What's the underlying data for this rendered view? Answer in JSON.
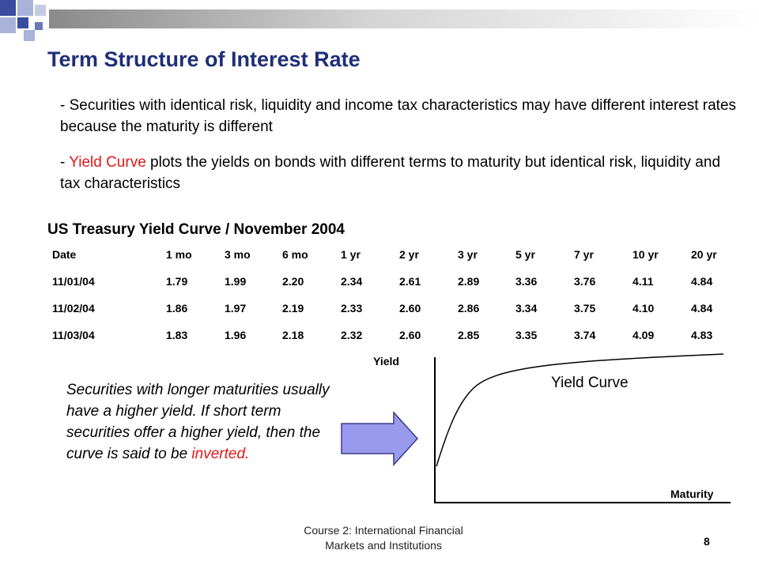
{
  "slide": {
    "title": "Term Structure of Interest Rate",
    "bullet1": "- Securities with identical risk, liquidity and income tax characteristics may have different interest rates because the maturity is different",
    "bullet2_prefix": "- ",
    "bullet2_highlight": "Yield Curve",
    "bullet2_rest": " plots the yields on bonds with different terms to maturity but identical risk, liquidity and tax characteristics",
    "table_title": "US Treasury Yield Curve / November 2004",
    "note_text": "Securities with longer maturities usually have a higher yield. If short term securities offer a higher yield, then the curve is said to be ",
    "note_highlight": "inverted.",
    "footer_line1": "Course 2: International Financial",
    "footer_line2": "Markets and Institutions",
    "page_number": "8",
    "colors": {
      "title": "#1f2f78",
      "highlight": "#e01818",
      "arrow_fill": "#9999ee",
      "deco_blue": "#3a4ba0",
      "deco_light": "#a9b2d8"
    }
  },
  "table": {
    "headers": [
      "Date",
      "1 mo",
      "3 mo",
      "6 mo",
      "1 yr",
      "2 yr",
      "3 yr",
      "5 yr",
      "7 yr",
      "10 yr",
      "20 yr"
    ],
    "rows": [
      [
        "11/01/04",
        "1.79",
        "1.99",
        "2.20",
        "2.34",
        "2.61",
        "2.89",
        "3.36",
        "3.76",
        "4.11",
        "4.84"
      ],
      [
        "11/02/04",
        "1.86",
        "1.97",
        "2.19",
        "2.33",
        "2.60",
        "2.86",
        "3.34",
        "3.75",
        "4.10",
        "4.84"
      ],
      [
        "11/03/04",
        "1.83",
        "1.96",
        "2.18",
        "2.32",
        "2.60",
        "2.85",
        "3.35",
        "3.74",
        "4.09",
        "4.83"
      ]
    ]
  },
  "diagram": {
    "y_axis_label": "Yield",
    "x_axis_label": "Maturity",
    "curve_label": "Yield Curve"
  }
}
